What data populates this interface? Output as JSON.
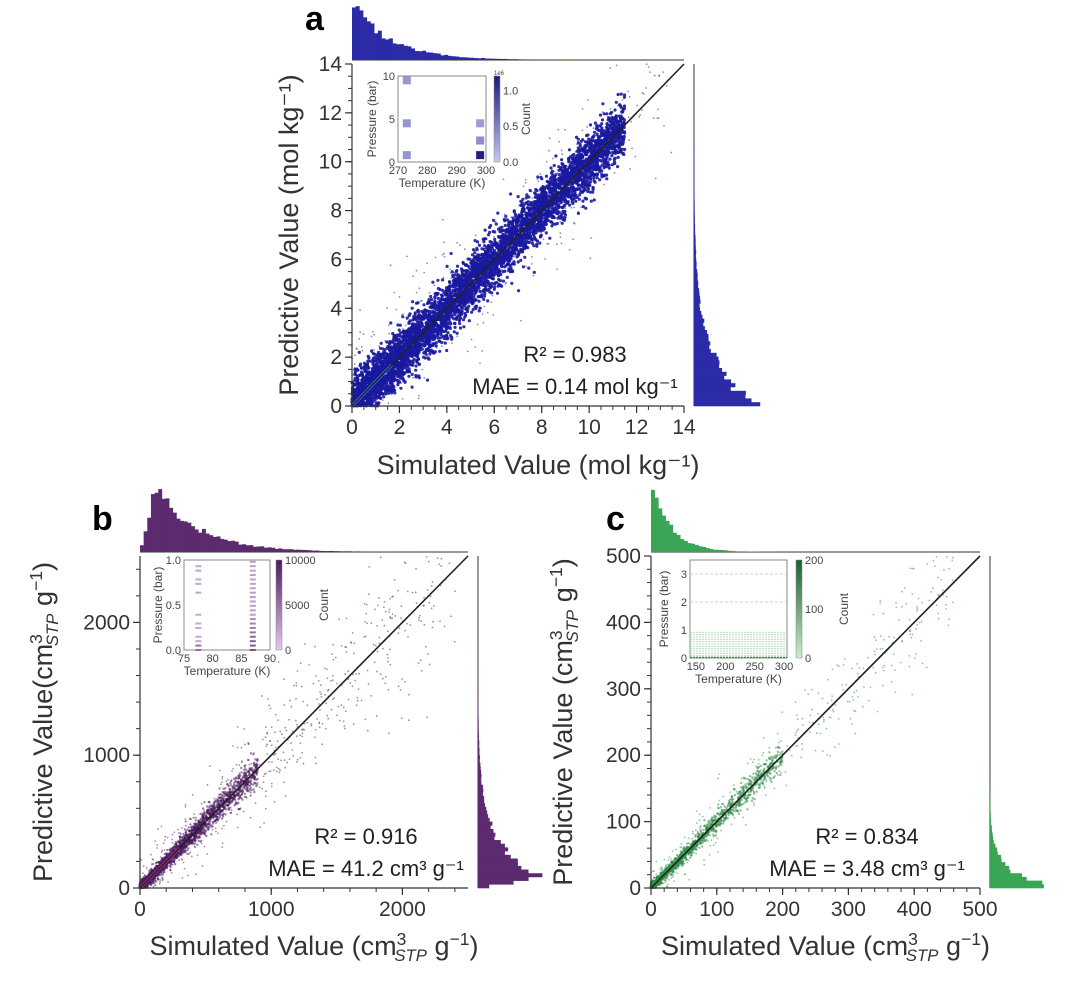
{
  "figure": "Parity plots of predictive vs simulated adsorption values with marginal histograms and temperature-pressure insets",
  "chart_data": [
    {
      "panel_label": "a",
      "type": "scatter",
      "color": "#1a1a9e",
      "hist_color": "#2b2ba8",
      "xlabel": "Simulated Value (mol kg⁻¹)",
      "ylabel": "Predictive Value (mol kg⁻¹)",
      "xlim": [
        0,
        14
      ],
      "ylim": [
        0,
        14
      ],
      "xticks": [
        0,
        2,
        4,
        6,
        8,
        10,
        12,
        14
      ],
      "yticks": [
        0,
        2,
        4,
        6,
        8,
        10,
        12,
        14
      ],
      "parity_line": [
        [
          0,
          0
        ],
        [
          14,
          14
        ]
      ],
      "density": {
        "spread_core": 0.55,
        "spread_outer": 1.4,
        "x_max_dense": 11.5,
        "x_max_sparse": 13.5
      },
      "stats": {
        "r2_label": "R² = 0.983",
        "mae_label": "MAE = 0.14 mol kg⁻¹",
        "r2": 0.983,
        "mae": 0.14,
        "mae_unit": "mol kg-1"
      },
      "hist_x": {
        "shape": "decay",
        "peak_at": 0.1,
        "decay": 1.6
      },
      "hist_y": {
        "shape": "decay",
        "peak_at": 0.1,
        "decay": 1.8
      },
      "inset": {
        "type": "heatmap",
        "xlabel": "Temperature (K)",
        "ylabel": "Pressure (bar)",
        "xlim": [
          270,
          300
        ],
        "ylim": [
          0,
          10
        ],
        "xticks": [
          270,
          280,
          290,
          300
        ],
        "yticks": [
          0,
          5,
          10
        ],
        "cbar_label": "Count",
        "cbar_ticks": [
          "0.0",
          "0.5",
          "1.0"
        ],
        "cbar_range": [
          0,
          1.2
        ],
        "cbar_multiplier": "1e6",
        "cmap": [
          "#c8c8f0",
          "#1a1a80"
        ],
        "cells": [
          {
            "t": 273,
            "p": 9.5,
            "v": 0.35
          },
          {
            "t": 273,
            "p": 4.5,
            "v": 0.35
          },
          {
            "t": 273,
            "p": 0.8,
            "v": 0.35
          },
          {
            "t": 298,
            "p": 4.5,
            "v": 0.3
          },
          {
            "t": 298,
            "p": 2.5,
            "v": 0.4
          },
          {
            "t": 298,
            "p": 0.8,
            "v": 1.15
          }
        ]
      }
    },
    {
      "panel_label": "b",
      "type": "scatter",
      "color": "#4b1a5e",
      "hist_color": "#5c2a6e",
      "xlabel": "Simulated Value (cm³ STP g⁻¹)",
      "xlabel_parts": {
        "pre": "Simulated Value (cm",
        "sup": "3",
        "sub": "STP",
        "post": " g",
        "post_sup": "−1",
        "close": ")"
      },
      "ylabel": "Predictive Value(cm³ STP g⁻¹)",
      "ylabel_parts": {
        "pre": "Predictive Value(cm",
        "sup": "3",
        "sub": "STP",
        "post": " g",
        "post_sup": "−1",
        "close": ")"
      },
      "xlim": [
        0,
        2500
      ],
      "ylim": [
        0,
        2500
      ],
      "xticks": [
        0,
        1000,
        2000
      ],
      "yticks": [
        0,
        1000,
        2000
      ],
      "minor_step": 200,
      "parity_line": [
        [
          0,
          0
        ],
        [
          2500,
          2500
        ]
      ],
      "density": {
        "spread_core": 45,
        "spread_outer": 260,
        "x_max_dense": 900,
        "x_max_sparse": 2400
      },
      "stats": {
        "r2_label": "R² = 0.916",
        "mae_label": "MAE = 41.2 cm³ g⁻¹",
        "r2": 0.916,
        "mae": 41.2,
        "mae_unit": "cm3 g-1"
      },
      "hist_x": {
        "shape": "peak",
        "peak_at": 120,
        "decay": 320
      },
      "hist_y": {
        "shape": "peak",
        "peak_at": 80,
        "decay": 260
      },
      "inset": {
        "type": "heatmap",
        "xlabel": "Temperature (K)",
        "ylabel": "Pressure (bar)",
        "xlim": [
          75,
          90
        ],
        "ylim": [
          0,
          1
        ],
        "xticks": [
          75,
          80,
          85,
          90
        ],
        "yticks": [
          "0.0",
          "0.5",
          "1.0"
        ],
        "cbar_label": "Count",
        "cbar_ticks": [
          "0",
          "5000",
          "10000"
        ],
        "cbar_range": [
          0,
          10000
        ],
        "cmap": [
          "#e6c8ef",
          "#4b1a5e"
        ],
        "temps": [
          77.5,
          87
        ]
      }
    },
    {
      "panel_label": "c",
      "type": "scatter",
      "color": "#2e8b45",
      "hist_color": "#3aa555",
      "xlabel": "Simulated Value (cm³ STP g⁻¹)",
      "xlabel_parts": {
        "pre": "Simulated Value (cm",
        "sup": "3",
        "sub": "STP",
        "post": " g",
        "post_sup": "−1",
        "close": ")"
      },
      "ylabel": "Predictive Value (cm³ STP g⁻¹)",
      "ylabel_parts": {
        "pre": "Predictive Value (cm",
        "sup": "3",
        "sub": "STP",
        "post": " g",
        "post_sup": "−1",
        "close": ")"
      },
      "xlim": [
        0,
        500
      ],
      "ylim": [
        0,
        500
      ],
      "xticks": [
        0,
        100,
        200,
        300,
        400,
        500
      ],
      "yticks": [
        0,
        100,
        200,
        300,
        400,
        500
      ],
      "minor_step": 20,
      "parity_line": [
        [
          0,
          0
        ],
        [
          500,
          500
        ]
      ],
      "density": {
        "spread_core": 8,
        "spread_outer": 40,
        "x_max_dense": 200,
        "x_max_sparse": 460
      },
      "stats": {
        "r2_label": "R² = 0.834",
        "mae_label": "MAE = 3.48 cm³ g⁻¹",
        "r2": 0.834,
        "mae": 3.48,
        "mae_unit": "cm3 g-1"
      },
      "hist_x": {
        "shape": "decay",
        "peak_at": 2,
        "decay": 30
      },
      "hist_y": {
        "shape": "decay",
        "peak_at": 2,
        "decay": 25
      },
      "inset": {
        "type": "heatmap",
        "xlabel": "Temperature (K)",
        "ylabel": "Pressure (bar)",
        "xlim": [
          140,
          305
        ],
        "ylim": [
          0,
          3.5
        ],
        "xticks": [
          150,
          200,
          250,
          300
        ],
        "yticks": [
          0,
          1,
          2,
          3
        ],
        "cbar_label": "Count",
        "cbar_ticks": [
          "0",
          "100",
          "200"
        ],
        "cbar_range": [
          0,
          200
        ],
        "cmap": [
          "#c8ecd0",
          "#1e5e2c"
        ]
      }
    }
  ]
}
